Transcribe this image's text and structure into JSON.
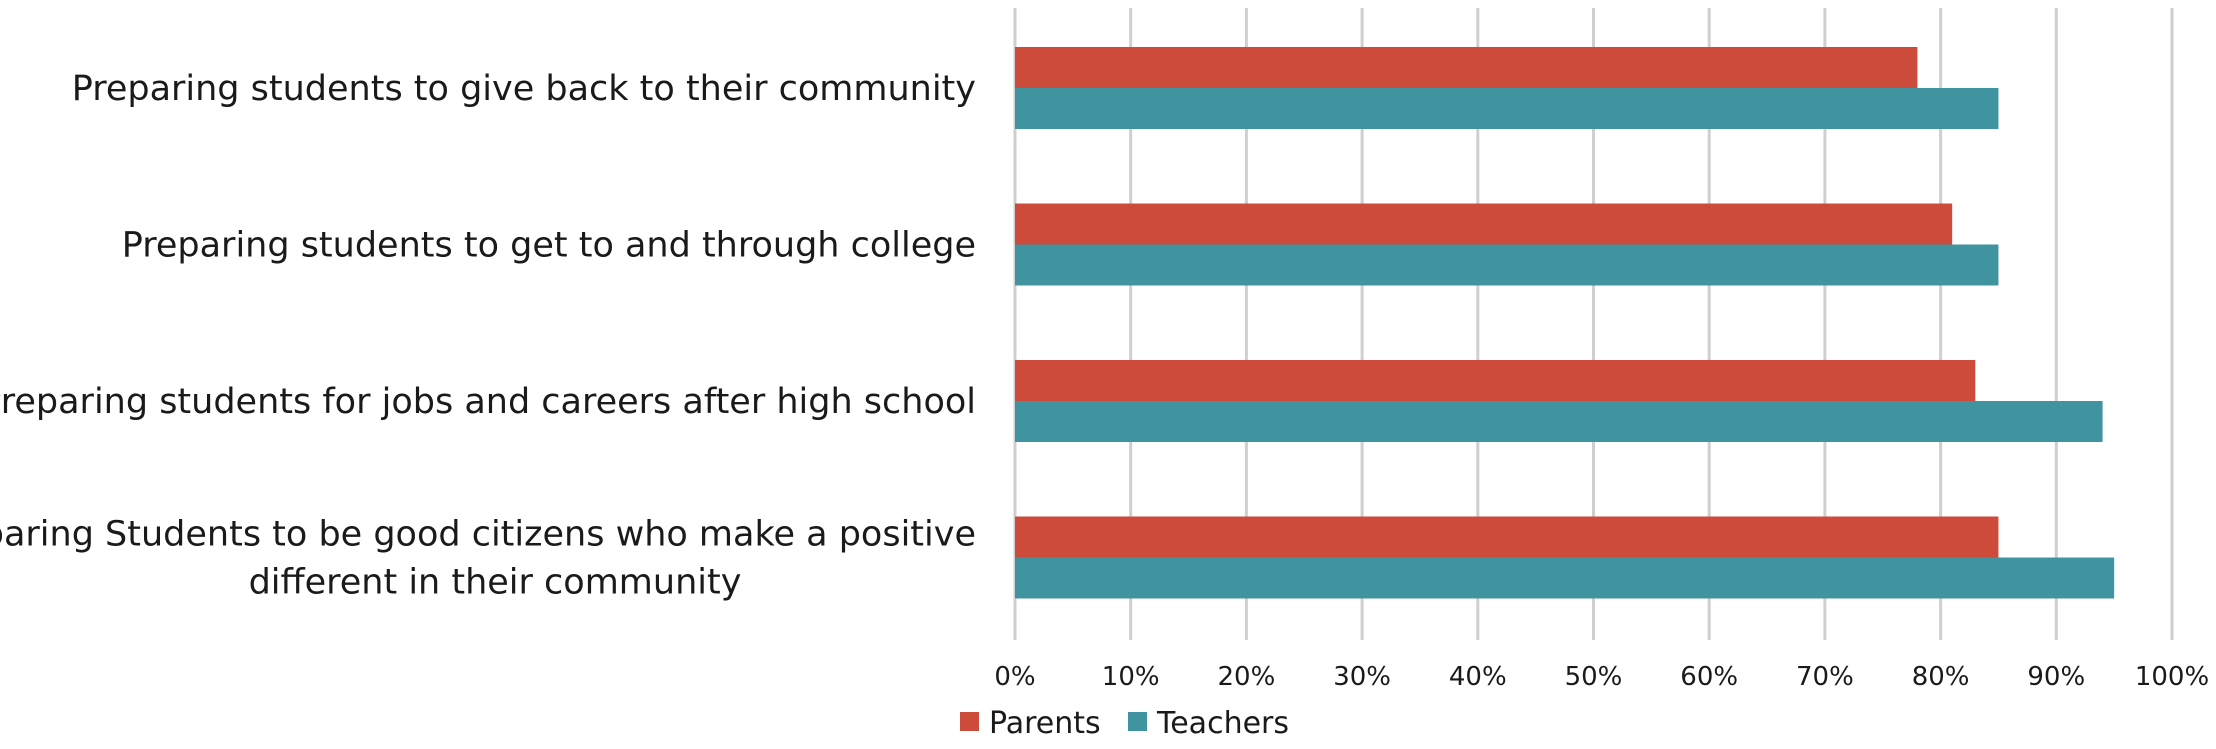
{
  "chart_data": {
    "type": "bar",
    "orientation": "horizontal",
    "categories": [
      "Preparing students to give back to their community",
      "Preparing students to get to and through college",
      "Preparing students for jobs and careers after high school",
      "Preparing Students to be good citizens who make a positive different in their community"
    ],
    "category_lines": [
      [
        "Preparing students to give back to their community"
      ],
      [
        "Preparing students to get to and through college"
      ],
      [
        "Preparing students for jobs and careers after high school"
      ],
      [
        "Preparing Students to be good citizens who make a positive",
        "different in their community"
      ]
    ],
    "series": [
      {
        "name": "Parents",
        "color": "#CD4B3A",
        "values": [
          78,
          81,
          83,
          85
        ]
      },
      {
        "name": "Teachers",
        "color": "#4094A0",
        "values": [
          85,
          85,
          94,
          95
        ]
      }
    ],
    "xlim": [
      0,
      100
    ],
    "x_ticks": [
      "0%",
      "10%",
      "20%",
      "30%",
      "40%",
      "50%",
      "60%",
      "70%",
      "80%",
      "90%",
      "100%"
    ],
    "grid": true,
    "gridline_color": "#CFCFCF",
    "legend": "bottom-center",
    "title": "",
    "xlabel": "",
    "ylabel": ""
  }
}
